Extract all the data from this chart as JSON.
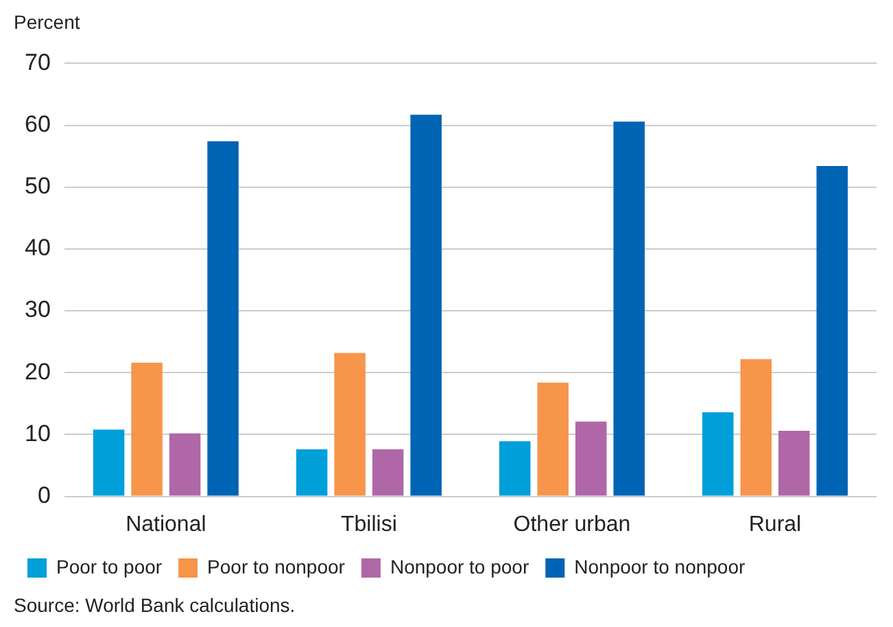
{
  "chart_data": {
    "type": "bar",
    "ylabel": "Percent",
    "categories": [
      "National",
      "Tbilisi",
      "Other urban",
      "Rural"
    ],
    "series": [
      {
        "name": "Poor to poor",
        "color": "#009fda",
        "values": [
          10.8,
          7.6,
          8.9,
          13.6
        ]
      },
      {
        "name": "Poor to nonpoor",
        "color": "#f7954a",
        "values": [
          21.6,
          23.2,
          18.4,
          22.2
        ]
      },
      {
        "name": "Nonpoor to poor",
        "color": "#b067a8",
        "values": [
          10.2,
          7.6,
          12.1,
          10.6
        ]
      },
      {
        "name": "Nonpoor to nonpoor",
        "color": "#0064b4",
        "values": [
          57.4,
          61.7,
          60.6,
          53.4
        ]
      }
    ],
    "ylim": [
      0,
      70
    ],
    "yticks": [
      0,
      10,
      20,
      30,
      40,
      50,
      60,
      70
    ],
    "grid": "y",
    "legend": "bottom",
    "annotations": [
      "Source: World Bank calculations."
    ]
  }
}
